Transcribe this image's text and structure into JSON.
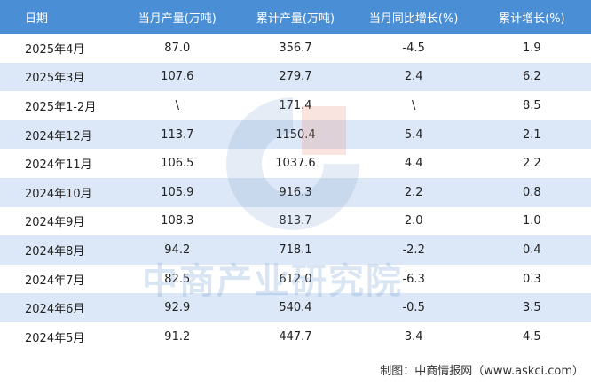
{
  "table": {
    "header": [
      "日期",
      "当月产量(万吨)",
      "累计产量(万吨)",
      "当月同比增长(%)",
      "累计增长(%)"
    ],
    "rows": [
      [
        "2025年4月",
        "87.0",
        "356.7",
        "-4.5",
        "1.9"
      ],
      [
        "2025年3月",
        "107.6",
        "279.7",
        "2.4",
        "6.2"
      ],
      [
        "2025年1-2月",
        "\\",
        "171.4",
        "\\",
        "8.5"
      ],
      [
        "2024年12月",
        "113.7",
        "1150.4",
        "5.4",
        "2.1"
      ],
      [
        "2024年11月",
        "106.5",
        "1037.6",
        "4.4",
        "2.2"
      ],
      [
        "2024年10月",
        "105.9",
        "916.3",
        "2.2",
        "0.8"
      ],
      [
        "2024年9月",
        "108.3",
        "813.7",
        "2.0",
        "1.0"
      ],
      [
        "2024年8月",
        "94.2",
        "718.1",
        "-2.2",
        "0.4"
      ],
      [
        "2024年7月",
        "82.5",
        "612.0",
        "-6.3",
        "0.3"
      ],
      [
        "2024年6月",
        "92.9",
        "540.4",
        "-0.5",
        "3.5"
      ],
      [
        "2024年5月",
        "91.2",
        "447.7",
        "3.4",
        "4.5"
      ]
    ]
  },
  "watermark": "中商产业研究院",
  "footer": "制图：中商情报网（www.askci.com）"
}
